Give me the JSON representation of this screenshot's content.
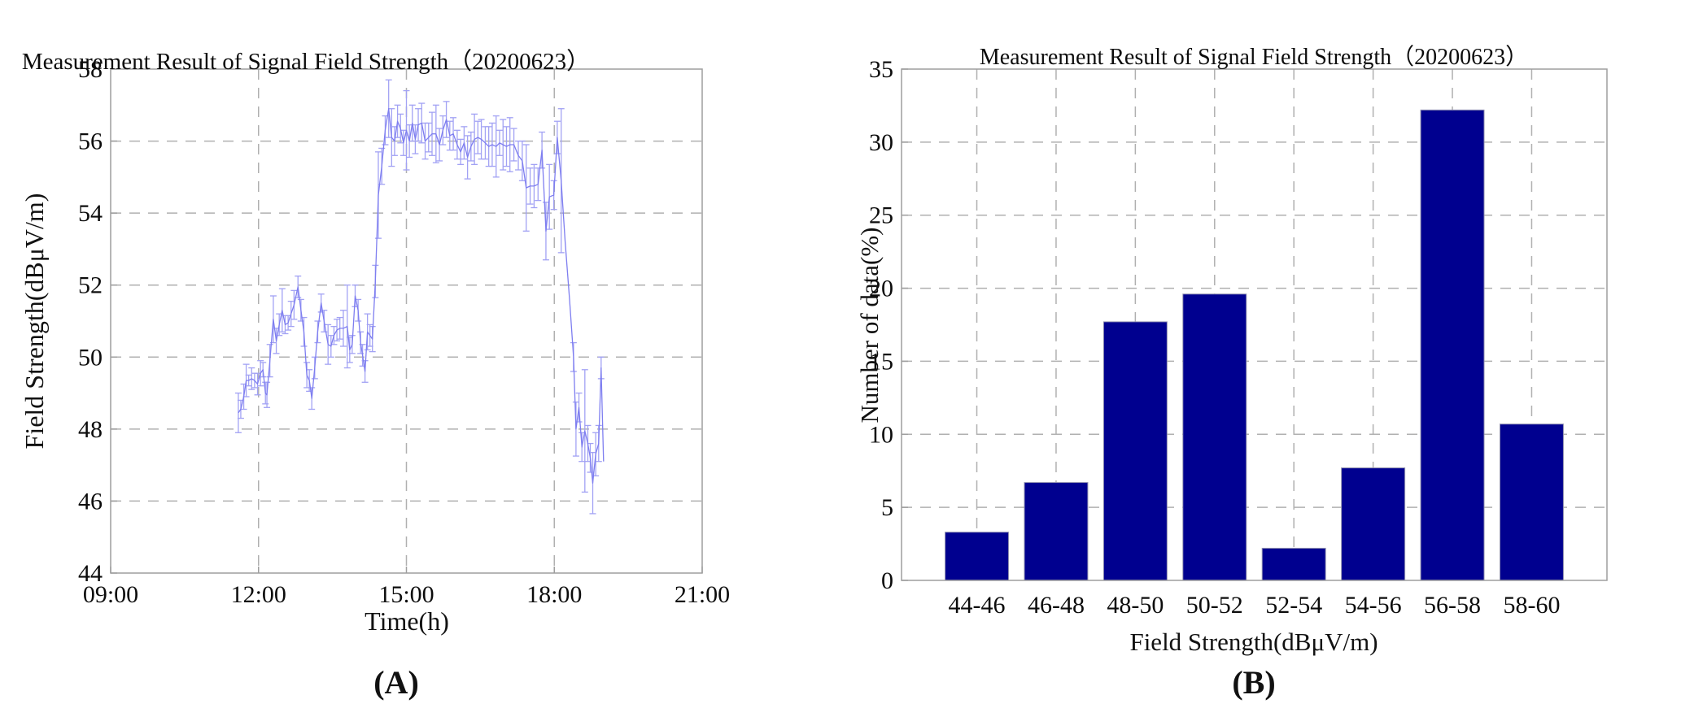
{
  "figure": {
    "panels": [
      {
        "id": "A",
        "title": "Measurement Result of Signal Field Strength（20200623）",
        "xlabel": "Time(h)",
        "ylabel": "Field Strength(dBμV/m)",
        "caption": "(A)"
      },
      {
        "id": "B",
        "title": "Measurement Result of Signal Field Strength（20200623）",
        "xlabel": "Field Strength(dBμV/m)",
        "ylabel": "Number of data(%)",
        "caption": "(B)"
      }
    ],
    "colors": {
      "line": "#7e7ef0",
      "errorbar": "#a2a2f4",
      "bar_fill": "#00008f",
      "bar_edge": "#9090b0",
      "grid": "#b0b0b0",
      "frame": "#9e9e9e"
    }
  },
  "chart_data": [
    {
      "type": "line",
      "title": "Measurement Result of Signal Field Strength（20200623）",
      "xlabel": "Time(h)",
      "ylabel": "Field Strength(dBμV/m)",
      "xlim_hours": [
        9,
        21
      ],
      "ylim": [
        44,
        58
      ],
      "x_ticks": [
        "09:00",
        "12:00",
        "15:00",
        "18:00",
        "21:00"
      ],
      "x_tick_hours": [
        9,
        12,
        15,
        18,
        21
      ],
      "y_ticks": [
        44,
        46,
        48,
        50,
        52,
        54,
        56,
        58
      ],
      "grid": "dashed",
      "legend": "none",
      "series": [
        {
          "name": "field-strength-with-error-bars",
          "points_t_v_err": [
            [
              11.59,
              48.45,
              0.55
            ],
            [
              11.64,
              48.55,
              0.25
            ],
            [
              11.7,
              48.9,
              0.35
            ],
            [
              11.75,
              49.35,
              0.45
            ],
            [
              11.8,
              49.35,
              0.15
            ],
            [
              11.86,
              49.4,
              0.3
            ],
            [
              11.92,
              49.35,
              0.2
            ],
            [
              11.98,
              49.25,
              0.3
            ],
            [
              12.04,
              49.55,
              0.35
            ],
            [
              12.09,
              49.65,
              0.2
            ],
            [
              12.14,
              49.0,
              0.3
            ],
            [
              12.17,
              48.95,
              0.35
            ],
            [
              12.23,
              49.9,
              0.45
            ],
            [
              12.3,
              51.05,
              0.65
            ],
            [
              12.36,
              50.45,
              0.35
            ],
            [
              12.42,
              50.9,
              0.3
            ],
            [
              12.48,
              51.3,
              0.6
            ],
            [
              12.54,
              50.9,
              0.25
            ],
            [
              12.6,
              50.95,
              0.2
            ],
            [
              12.66,
              51.2,
              0.35
            ],
            [
              12.72,
              51.45,
              0.4
            ],
            [
              12.8,
              51.95,
              0.3
            ],
            [
              12.86,
              51.3,
              0.3
            ],
            [
              12.92,
              50.7,
              0.4
            ],
            [
              12.98,
              49.5,
              0.35
            ],
            [
              13.03,
              49.35,
              0.3
            ],
            [
              13.08,
              48.85,
              0.3
            ],
            [
              13.14,
              49.7,
              0.3
            ],
            [
              13.2,
              50.7,
              0.3
            ],
            [
              13.27,
              51.5,
              0.25
            ],
            [
              13.33,
              51.0,
              0.3
            ],
            [
              13.41,
              50.35,
              0.55
            ],
            [
              13.47,
              50.3,
              0.3
            ],
            [
              13.53,
              50.6,
              0.25
            ],
            [
              13.59,
              50.75,
              0.3
            ],
            [
              13.65,
              50.8,
              0.3
            ],
            [
              13.72,
              50.8,
              0.5
            ],
            [
              13.8,
              50.85,
              1.15
            ],
            [
              13.85,
              50.2,
              0.35
            ],
            [
              13.9,
              50.35,
              0.25
            ],
            [
              13.96,
              51.7,
              0.3
            ],
            [
              14.02,
              51.3,
              0.3
            ],
            [
              14.07,
              50.4,
              0.3
            ],
            [
              14.11,
              50.05,
              0.3
            ],
            [
              14.16,
              49.6,
              0.3
            ],
            [
              14.21,
              50.7,
              0.5
            ],
            [
              14.26,
              50.6,
              0.3
            ],
            [
              14.31,
              50.5,
              0.35
            ],
            [
              14.37,
              52.1,
              0.45
            ],
            [
              14.43,
              54.5,
              1.2
            ],
            [
              14.5,
              55.3,
              0.5
            ],
            [
              14.57,
              56.3,
              0.4
            ],
            [
              14.64,
              56.9,
              0.8
            ],
            [
              14.7,
              56.1,
              0.8
            ],
            [
              14.76,
              56.0,
              0.4
            ],
            [
              14.82,
              56.55,
              0.45
            ],
            [
              14.88,
              56.35,
              0.4
            ],
            [
              14.94,
              55.95,
              0.35
            ],
            [
              15.0,
              56.3,
              1.1
            ],
            [
              15.06,
              56.0,
              0.45
            ],
            [
              15.12,
              56.5,
              0.5
            ],
            [
              15.18,
              56.05,
              0.4
            ],
            [
              15.24,
              56.45,
              0.45
            ],
            [
              15.31,
              56.5,
              0.55
            ],
            [
              15.38,
              56.0,
              0.5
            ],
            [
              15.45,
              56.1,
              0.4
            ],
            [
              15.52,
              56.2,
              0.6
            ],
            [
              15.6,
              56.2,
              0.8
            ],
            [
              15.67,
              55.9,
              0.45
            ],
            [
              15.74,
              56.3,
              0.4
            ],
            [
              15.81,
              56.6,
              0.5
            ],
            [
              15.88,
              56.15,
              0.4
            ],
            [
              15.95,
              56.2,
              0.45
            ],
            [
              16.03,
              55.9,
              0.4
            ],
            [
              16.1,
              55.7,
              0.35
            ],
            [
              16.17,
              55.95,
              0.45
            ],
            [
              16.24,
              55.55,
              0.6
            ],
            [
              16.31,
              55.85,
              0.4
            ],
            [
              16.38,
              56.05,
              0.7
            ],
            [
              16.45,
              56.1,
              0.45
            ],
            [
              16.52,
              56.05,
              0.55
            ],
            [
              16.6,
              55.95,
              0.45
            ],
            [
              16.67,
              55.85,
              0.55
            ],
            [
              16.74,
              55.9,
              0.6
            ],
            [
              16.82,
              55.85,
              0.85
            ],
            [
              16.89,
              55.95,
              0.35
            ],
            [
              16.96,
              55.9,
              0.7
            ],
            [
              17.03,
              55.85,
              0.55
            ],
            [
              17.1,
              55.9,
              0.75
            ],
            [
              17.18,
              55.9,
              0.45
            ],
            [
              17.27,
              55.6,
              0.4
            ],
            [
              17.35,
              55.45,
              0.55
            ],
            [
              17.43,
              54.7,
              1.2
            ],
            [
              17.51,
              54.75,
              0.5
            ],
            [
              17.59,
              54.75,
              0.6
            ],
            [
              17.67,
              54.8,
              0.45
            ],
            [
              17.75,
              55.75,
              0.5
            ],
            [
              17.83,
              53.5,
              0.8
            ],
            [
              17.9,
              54.45,
              0.9
            ],
            [
              17.99,
              54.5,
              0.4
            ],
            [
              18.06,
              56.1,
              0.45
            ],
            [
              18.14,
              54.9,
              2.0
            ],
            [
              18.22,
              53.2,
              0
            ],
            [
              18.31,
              51.6,
              0
            ],
            [
              18.39,
              50.0,
              0.4
            ],
            [
              18.44,
              48.0,
              0.75
            ],
            [
              18.5,
              48.6,
              0.4
            ],
            [
              18.56,
              47.5,
              0.4
            ],
            [
              18.62,
              47.95,
              1.7
            ],
            [
              18.68,
              47.6,
              0.5
            ],
            [
              18.73,
              47.2,
              0.4
            ],
            [
              18.78,
              46.5,
              0.85
            ],
            [
              18.84,
              47.3,
              0.6
            ],
            [
              18.9,
              47.6,
              0.5
            ],
            [
              18.95,
              49.7,
              0.3
            ],
            [
              19.0,
              47.1,
              0
            ]
          ]
        }
      ]
    },
    {
      "type": "bar",
      "title": "Measurement Result of Signal Field Strength（20200623）",
      "xlabel": "Field Strength(dBμV/m)",
      "ylabel": "Number of data(%)",
      "categories": [
        "44-46",
        "46-48",
        "48-50",
        "50-52",
        "52-54",
        "54-56",
        "56-58",
        "58-60"
      ],
      "values": [
        3.3,
        6.7,
        17.7,
        19.6,
        2.2,
        7.7,
        32.2,
        10.7
      ],
      "ylim": [
        0,
        35
      ],
      "y_ticks": [
        0,
        5,
        10,
        15,
        20,
        25,
        30,
        35
      ],
      "grid": "dashed",
      "legend": "none"
    }
  ]
}
